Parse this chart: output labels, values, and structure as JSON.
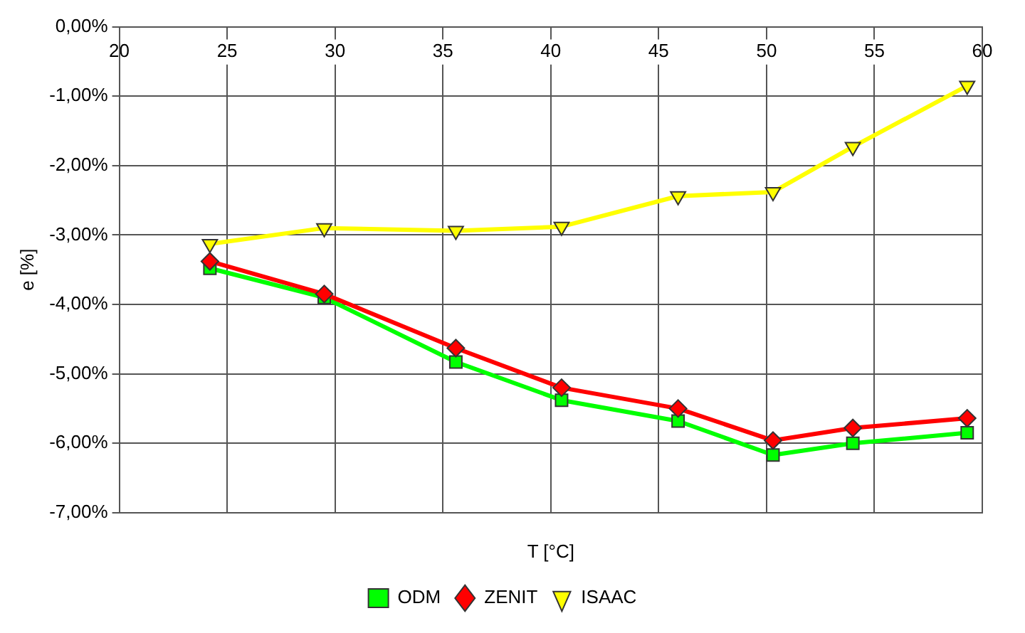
{
  "chart_data": {
    "type": "line",
    "xlabel": "T [°C]",
    "ylabel": "e [%]",
    "x": [
      24.2,
      29.5,
      35.6,
      40.5,
      45.9,
      50.3,
      54.0,
      59.3
    ],
    "series": [
      {
        "name": "ODM",
        "color": "#00ff00",
        "marker": "square",
        "values": [
          -3.48,
          -3.9,
          -4.83,
          -5.38,
          -5.68,
          -6.17,
          -6.0,
          -5.85
        ]
      },
      {
        "name": "ZENIT",
        "color": "#ff0000",
        "marker": "diamond",
        "values": [
          -3.38,
          -3.85,
          -4.63,
          -5.2,
          -5.5,
          -5.96,
          -5.78,
          -5.64
        ]
      },
      {
        "name": "ISAAC",
        "color": "#ffff00",
        "marker": "triangle",
        "values": [
          -3.13,
          -2.9,
          -2.94,
          -2.88,
          -2.44,
          -2.38,
          -1.73,
          -0.85
        ]
      }
    ],
    "xlim": [
      20,
      60
    ],
    "xticks": [
      20,
      25,
      30,
      35,
      40,
      45,
      50,
      55,
      60
    ],
    "ylim": [
      -7,
      0
    ],
    "yticks": [
      {
        "value": 0,
        "label": "0,00%"
      },
      {
        "value": -1,
        "label": "-1,00%"
      },
      {
        "value": -2,
        "label": "-2,00%"
      },
      {
        "value": -3,
        "label": "-3,00%"
      },
      {
        "value": -4,
        "label": "-4,00%"
      },
      {
        "value": -5,
        "label": "-5,00%"
      },
      {
        "value": -6,
        "label": "-6,00%"
      },
      {
        "value": -7,
        "label": "-7,00%"
      }
    ],
    "grid": true,
    "legend": "bottom",
    "line_style": "solid"
  }
}
